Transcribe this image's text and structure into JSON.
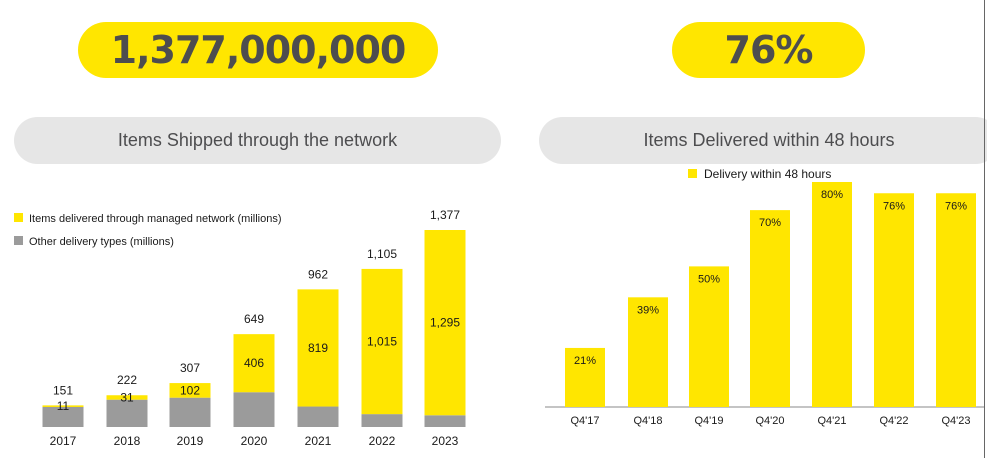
{
  "kpis": {
    "left_value": "1,377,000,000",
    "right_value": "76%"
  },
  "titles": {
    "left": "Items Shipped through the network",
    "right": "Items Delivered within 48 hours"
  },
  "colors": {
    "yellow": "#ffe600",
    "gray": "#9b9b9b",
    "text": "#4d4d4f",
    "pill_bg": "#e6e6e6"
  },
  "chart_data": [
    {
      "type": "bar",
      "stacked": true,
      "categories": [
        "2017",
        "2018",
        "2019",
        "2020",
        "2021",
        "2022",
        "2023"
      ],
      "series": [
        {
          "name": "Other delivery types (millions)",
          "color": "#9b9b9b",
          "values": [
            140,
            191,
            205,
            243,
            143,
            90,
            82
          ]
        },
        {
          "name": "Items delivered through managed network (millions)",
          "color": "#ffe600",
          "values": [
            11,
            31,
            102,
            406,
            819,
            1015,
            1295
          ]
        }
      ],
      "segment_labels": [
        "11",
        "31",
        "102",
        "406",
        "819",
        "1,015",
        "1,295"
      ],
      "totals": [
        151,
        222,
        307,
        649,
        962,
        1105,
        1377
      ],
      "total_labels": [
        "151",
        "222",
        "307",
        "649",
        "962",
        "1,105",
        "1,377"
      ],
      "ylim": [
        0,
        1377
      ],
      "legend_position": "top-left",
      "grid": false
    },
    {
      "type": "bar",
      "categories": [
        "Q4'17",
        "Q4'18",
        "Q4'19",
        "Q4'20",
        "Q4'21",
        "Q4'22",
        "Q4'23"
      ],
      "series": [
        {
          "name": "Delivery within 48 hours",
          "color": "#ffe600",
          "values": [
            21,
            39,
            50,
            70,
            80,
            76,
            76
          ]
        }
      ],
      "value_labels": [
        "21%",
        "39%",
        "50%",
        "70%",
        "80%",
        "76%",
        "76%"
      ],
      "ylim": [
        0,
        80
      ],
      "legend_position": "top-center",
      "grid": false
    }
  ]
}
